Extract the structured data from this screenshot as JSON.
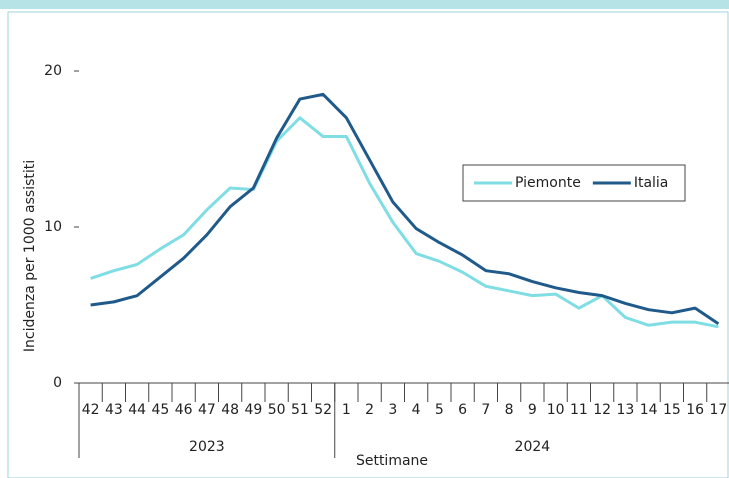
{
  "chart_data": {
    "type": "line",
    "y_label": "Incidenza per 1000 assistiti",
    "x_label": "Settimane",
    "categories": [
      "42",
      "43",
      "44",
      "45",
      "46",
      "47",
      "48",
      "49",
      "50",
      "51",
      "52",
      "1",
      "2",
      "3",
      "4",
      "5",
      "6",
      "7",
      "8",
      "9",
      "10",
      "11",
      "12",
      "13",
      "14",
      "15",
      "16",
      "17"
    ],
    "x_groups": [
      {
        "label": "2023",
        "count": 11
      },
      {
        "label": "2024",
        "count": 17
      }
    ],
    "series": [
      {
        "name": "Piemonte",
        "color": "#7fdde4",
        "values": [
          6.7,
          7.2,
          7.6,
          8.6,
          9.5,
          11.1,
          12.5,
          12.4,
          15.5,
          17.0,
          15.8,
          15.8,
          12.8,
          10.3,
          8.3,
          7.8,
          7.1,
          6.2,
          5.9,
          5.6,
          5.7,
          4.8,
          5.6,
          4.2,
          3.7,
          3.9,
          3.9,
          3.6
        ]
      },
      {
        "name": "Italia",
        "color": "#1f5a8a",
        "values": [
          5.0,
          5.2,
          5.6,
          6.8,
          8.0,
          9.5,
          11.3,
          12.5,
          15.7,
          18.2,
          18.5,
          17.0,
          14.3,
          11.6,
          9.9,
          9.0,
          8.2,
          7.2,
          7.0,
          6.5,
          6.1,
          5.8,
          5.6,
          5.1,
          4.7,
          4.5,
          4.8,
          3.8
        ]
      }
    ],
    "ylim": [
      0,
      20
    ],
    "yticks": [
      0,
      10,
      20
    ],
    "legend": "right"
  }
}
